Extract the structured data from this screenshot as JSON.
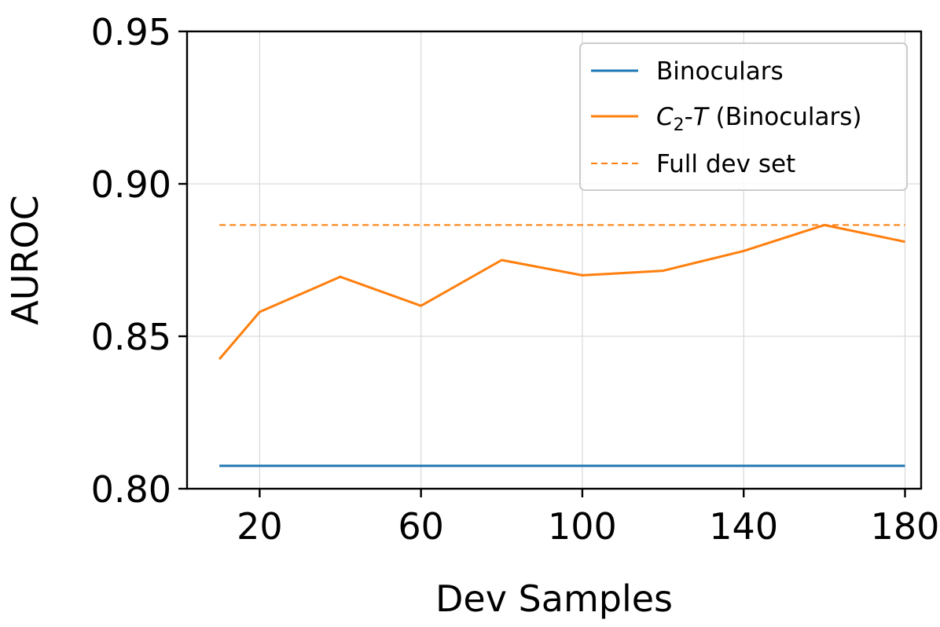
{
  "chart_data": {
    "type": "line",
    "title": "",
    "xlabel": "Dev Samples",
    "ylabel": "AUROC",
    "xlim": [
      2,
      184
    ],
    "ylim": [
      0.8,
      0.95
    ],
    "xticks": [
      20,
      60,
      100,
      140,
      180
    ],
    "yticks": [
      0.8,
      0.85,
      0.9,
      0.95
    ],
    "xtick_labels": [
      "20",
      "60",
      "100",
      "140",
      "180"
    ],
    "ytick_labels": [
      "0.80",
      "0.85",
      "0.90",
      "0.95"
    ],
    "grid": true,
    "legend_position": "top-right",
    "series": [
      {
        "name": "Binoculars",
        "color": "#1f77b4",
        "style": "solid",
        "x": [
          10,
          180
        ],
        "y": [
          0.8075,
          0.8075
        ]
      },
      {
        "name_prefix": "C",
        "name_subscript": "2",
        "name_dash": "-",
        "name_italic": "T",
        "name_suffix": " (Binoculars)",
        "color": "#ff7f0e",
        "style": "solid",
        "x": [
          10,
          20,
          40,
          60,
          80,
          100,
          120,
          140,
          160,
          180
        ],
        "y": [
          0.8425,
          0.858,
          0.8695,
          0.86,
          0.875,
          0.87,
          0.8715,
          0.878,
          0.8865,
          0.881
        ]
      },
      {
        "name": "Full dev set",
        "color": "#ff7f0e",
        "style": "dashed",
        "x": [
          10,
          180
        ],
        "y": [
          0.8865,
          0.8865
        ]
      }
    ]
  }
}
